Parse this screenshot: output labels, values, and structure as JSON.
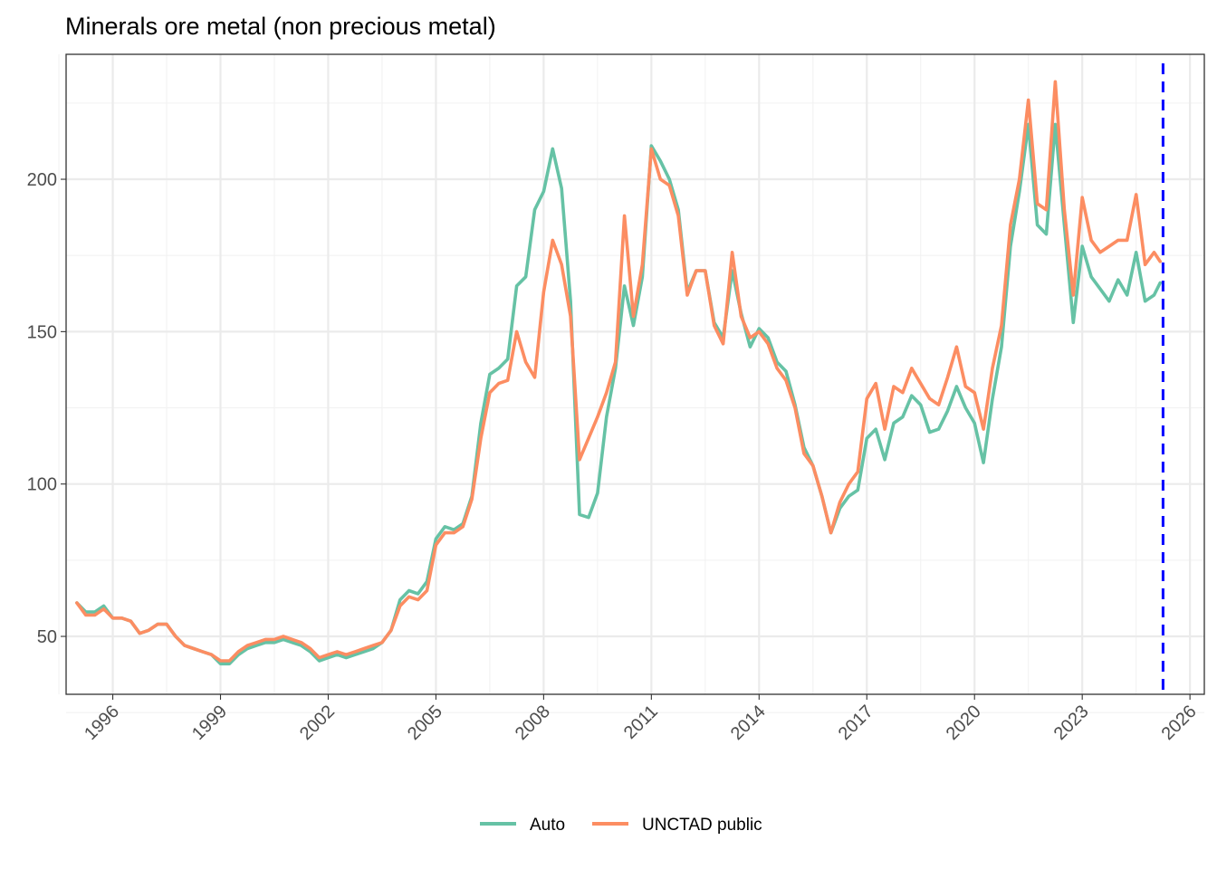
{
  "chart_data": {
    "type": "line",
    "title": "Minerals ore metal (non precious metal)",
    "xlabel": "",
    "ylabel": "",
    "x_ticks": [
      "1996",
      "1999",
      "2002",
      "2005",
      "2008",
      "2011",
      "2014",
      "2017",
      "2020",
      "2023",
      "2026"
    ],
    "y_ticks": [
      "50",
      "100",
      "150",
      "200"
    ],
    "xlim": [
      1994.7,
      2026.4
    ],
    "ylim": [
      31,
      241
    ],
    "grid": true,
    "legend_position": "bottom",
    "reference_line": {
      "x": 2025.25,
      "color": "#0000ff",
      "style": "dashed"
    },
    "series": [
      {
        "name": "Auto",
        "color": "#66c2a5",
        "points": [
          [
            1995.0,
            61
          ],
          [
            1995.25,
            58
          ],
          [
            1995.5,
            58
          ],
          [
            1995.75,
            60
          ],
          [
            1996.0,
            56
          ],
          [
            1996.25,
            56
          ],
          [
            1996.5,
            55
          ],
          [
            1996.75,
            51
          ],
          [
            1997.0,
            52
          ],
          [
            1997.25,
            54
          ],
          [
            1997.5,
            54
          ],
          [
            1997.75,
            50
          ],
          [
            1998.0,
            47
          ],
          [
            1998.25,
            46
          ],
          [
            1998.5,
            45
          ],
          [
            1998.75,
            44
          ],
          [
            1999.0,
            41
          ],
          [
            1999.25,
            41
          ],
          [
            1999.5,
            44
          ],
          [
            1999.75,
            46
          ],
          [
            2000.0,
            47
          ],
          [
            2000.25,
            48
          ],
          [
            2000.5,
            48
          ],
          [
            2000.75,
            49
          ],
          [
            2001.0,
            48
          ],
          [
            2001.25,
            47
          ],
          [
            2001.5,
            45
          ],
          [
            2001.75,
            42
          ],
          [
            2002.0,
            43
          ],
          [
            2002.25,
            44
          ],
          [
            2002.5,
            43
          ],
          [
            2002.75,
            44
          ],
          [
            2003.0,
            45
          ],
          [
            2003.25,
            46
          ],
          [
            2003.5,
            48
          ],
          [
            2003.75,
            52
          ],
          [
            2004.0,
            62
          ],
          [
            2004.25,
            65
          ],
          [
            2004.5,
            64
          ],
          [
            2004.75,
            68
          ],
          [
            2005.0,
            82
          ],
          [
            2005.25,
            86
          ],
          [
            2005.5,
            85
          ],
          [
            2005.75,
            87
          ],
          [
            2006.0,
            96
          ],
          [
            2006.25,
            120
          ],
          [
            2006.5,
            136
          ],
          [
            2006.75,
            138
          ],
          [
            2007.0,
            141
          ],
          [
            2007.25,
            165
          ],
          [
            2007.5,
            168
          ],
          [
            2007.75,
            190
          ],
          [
            2008.0,
            196
          ],
          [
            2008.25,
            210
          ],
          [
            2008.5,
            197
          ],
          [
            2008.75,
            160
          ],
          [
            2009.0,
            90
          ],
          [
            2009.25,
            89
          ],
          [
            2009.5,
            97
          ],
          [
            2009.75,
            122
          ],
          [
            2010.0,
            138
          ],
          [
            2010.25,
            165
          ],
          [
            2010.5,
            152
          ],
          [
            2010.75,
            168
          ],
          [
            2011.0,
            211
          ],
          [
            2011.25,
            206
          ],
          [
            2011.5,
            200
          ],
          [
            2011.75,
            190
          ],
          [
            2012.0,
            163
          ],
          [
            2012.25,
            170
          ],
          [
            2012.5,
            170
          ],
          [
            2012.75,
            153
          ],
          [
            2013.0,
            148
          ],
          [
            2013.25,
            170
          ],
          [
            2013.5,
            156
          ],
          [
            2013.75,
            145
          ],
          [
            2014.0,
            151
          ],
          [
            2014.25,
            148
          ],
          [
            2014.5,
            140
          ],
          [
            2014.75,
            137
          ],
          [
            2015.0,
            126
          ],
          [
            2015.25,
            112
          ],
          [
            2015.5,
            106
          ],
          [
            2015.75,
            96
          ],
          [
            2016.0,
            84
          ],
          [
            2016.25,
            92
          ],
          [
            2016.5,
            96
          ],
          [
            2016.75,
            98
          ],
          [
            2017.0,
            115
          ],
          [
            2017.25,
            118
          ],
          [
            2017.5,
            108
          ],
          [
            2017.75,
            120
          ],
          [
            2018.0,
            122
          ],
          [
            2018.25,
            129
          ],
          [
            2018.5,
            126
          ],
          [
            2018.75,
            117
          ],
          [
            2019.0,
            118
          ],
          [
            2019.25,
            124
          ],
          [
            2019.5,
            132
          ],
          [
            2019.75,
            125
          ],
          [
            2020.0,
            120
          ],
          [
            2020.25,
            107
          ],
          [
            2020.5,
            128
          ],
          [
            2020.75,
            145
          ],
          [
            2021.0,
            178
          ],
          [
            2021.25,
            196
          ],
          [
            2021.5,
            218
          ],
          [
            2021.75,
            185
          ],
          [
            2022.0,
            182
          ],
          [
            2022.25,
            218
          ],
          [
            2022.5,
            185
          ],
          [
            2022.75,
            153
          ],
          [
            2023.0,
            178
          ],
          [
            2023.25,
            168
          ],
          [
            2023.5,
            164
          ],
          [
            2023.75,
            160
          ],
          [
            2024.0,
            167
          ],
          [
            2024.25,
            162
          ],
          [
            2024.5,
            176
          ],
          [
            2024.75,
            160
          ],
          [
            2025.0,
            162
          ],
          [
            2025.17,
            166
          ]
        ]
      },
      {
        "name": "UNCTAD public",
        "color": "#fc8d62",
        "points": [
          [
            1995.0,
            61
          ],
          [
            1995.25,
            57
          ],
          [
            1995.5,
            57
          ],
          [
            1995.75,
            59
          ],
          [
            1996.0,
            56
          ],
          [
            1996.25,
            56
          ],
          [
            1996.5,
            55
          ],
          [
            1996.75,
            51
          ],
          [
            1997.0,
            52
          ],
          [
            1997.25,
            54
          ],
          [
            1997.5,
            54
          ],
          [
            1997.75,
            50
          ],
          [
            1998.0,
            47
          ],
          [
            1998.25,
            46
          ],
          [
            1998.5,
            45
          ],
          [
            1998.75,
            44
          ],
          [
            1999.0,
            42
          ],
          [
            1999.25,
            42
          ],
          [
            1999.5,
            45
          ],
          [
            1999.75,
            47
          ],
          [
            2000.0,
            48
          ],
          [
            2000.25,
            49
          ],
          [
            2000.5,
            49
          ],
          [
            2000.75,
            50
          ],
          [
            2001.0,
            49
          ],
          [
            2001.25,
            48
          ],
          [
            2001.5,
            46
          ],
          [
            2001.75,
            43
          ],
          [
            2002.0,
            44
          ],
          [
            2002.25,
            45
          ],
          [
            2002.5,
            44
          ],
          [
            2002.75,
            45
          ],
          [
            2003.0,
            46
          ],
          [
            2003.25,
            47
          ],
          [
            2003.5,
            48
          ],
          [
            2003.75,
            52
          ],
          [
            2004.0,
            60
          ],
          [
            2004.25,
            63
          ],
          [
            2004.5,
            62
          ],
          [
            2004.75,
            65
          ],
          [
            2005.0,
            80
          ],
          [
            2005.25,
            84
          ],
          [
            2005.5,
            84
          ],
          [
            2005.75,
            86
          ],
          [
            2006.0,
            95
          ],
          [
            2006.25,
            115
          ],
          [
            2006.5,
            130
          ],
          [
            2006.75,
            133
          ],
          [
            2007.0,
            134
          ],
          [
            2007.25,
            150
          ],
          [
            2007.5,
            140
          ],
          [
            2007.75,
            135
          ],
          [
            2008.0,
            163
          ],
          [
            2008.25,
            180
          ],
          [
            2008.5,
            172
          ],
          [
            2008.75,
            155
          ],
          [
            2009.0,
            108
          ],
          [
            2009.25,
            115
          ],
          [
            2009.5,
            122
          ],
          [
            2009.75,
            130
          ],
          [
            2010.0,
            140
          ],
          [
            2010.25,
            188
          ],
          [
            2010.5,
            155
          ],
          [
            2010.75,
            172
          ],
          [
            2011.0,
            210
          ],
          [
            2011.25,
            200
          ],
          [
            2011.5,
            198
          ],
          [
            2011.75,
            188
          ],
          [
            2012.0,
            162
          ],
          [
            2012.25,
            170
          ],
          [
            2012.5,
            170
          ],
          [
            2012.75,
            152
          ],
          [
            2013.0,
            146
          ],
          [
            2013.25,
            176
          ],
          [
            2013.5,
            155
          ],
          [
            2013.75,
            148
          ],
          [
            2014.0,
            150
          ],
          [
            2014.25,
            146
          ],
          [
            2014.5,
            138
          ],
          [
            2014.75,
            134
          ],
          [
            2015.0,
            125
          ],
          [
            2015.25,
            110
          ],
          [
            2015.5,
            106
          ],
          [
            2015.75,
            96
          ],
          [
            2016.0,
            84
          ],
          [
            2016.25,
            94
          ],
          [
            2016.5,
            100
          ],
          [
            2016.75,
            104
          ],
          [
            2017.0,
            128
          ],
          [
            2017.25,
            133
          ],
          [
            2017.5,
            118
          ],
          [
            2017.75,
            132
          ],
          [
            2018.0,
            130
          ],
          [
            2018.25,
            138
          ],
          [
            2018.5,
            133
          ],
          [
            2018.75,
            128
          ],
          [
            2019.0,
            126
          ],
          [
            2019.25,
            135
          ],
          [
            2019.5,
            145
          ],
          [
            2019.75,
            132
          ],
          [
            2020.0,
            130
          ],
          [
            2020.25,
            118
          ],
          [
            2020.5,
            138
          ],
          [
            2020.75,
            152
          ],
          [
            2021.0,
            185
          ],
          [
            2021.25,
            200
          ],
          [
            2021.5,
            226
          ],
          [
            2021.75,
            192
          ],
          [
            2022.0,
            190
          ],
          [
            2022.25,
            232
          ],
          [
            2022.5,
            190
          ],
          [
            2022.75,
            162
          ],
          [
            2023.0,
            194
          ],
          [
            2023.25,
            180
          ],
          [
            2023.5,
            176
          ],
          [
            2023.75,
            178
          ],
          [
            2024.0,
            180
          ],
          [
            2024.25,
            180
          ],
          [
            2024.5,
            195
          ],
          [
            2024.75,
            172
          ],
          [
            2025.0,
            176
          ],
          [
            2025.17,
            173
          ]
        ]
      }
    ]
  }
}
